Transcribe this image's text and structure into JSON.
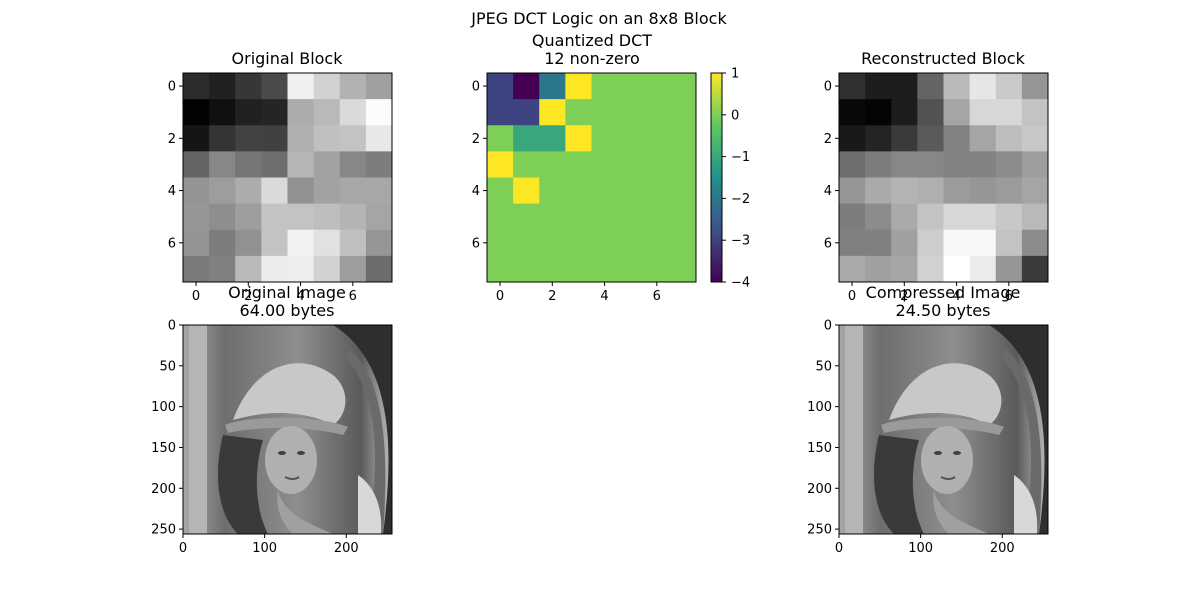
{
  "figure": {
    "title": "JPEG DCT Logic on an 8x8 Block"
  },
  "chart_data": [
    {
      "type": "heatmap",
      "title": "Original Block",
      "colormap": "gray",
      "x_ticks": [
        0,
        2,
        4,
        6
      ],
      "y_ticks": [
        0,
        2,
        4,
        6
      ],
      "matrix": [
        [
          44,
          33,
          55,
          74,
          240,
          210,
          178,
          160
        ],
        [
          3,
          16,
          33,
          37,
          172,
          185,
          218,
          252
        ],
        [
          21,
          52,
          66,
          65,
          175,
          192,
          195,
          232
        ],
        [
          100,
          135,
          118,
          110,
          181,
          162,
          135,
          125
        ],
        [
          148,
          157,
          172,
          218,
          146,
          162,
          167,
          167
        ],
        [
          150,
          142,
          157,
          195,
          195,
          190,
          180,
          165
        ],
        [
          148,
          125,
          145,
          195,
          242,
          225,
          192,
          150
        ],
        [
          122,
          128,
          185,
          235,
          238,
          210,
          158,
          108
        ]
      ]
    },
    {
      "type": "heatmap",
      "title": "Quantized DCT",
      "subtitle": "12 non-zero",
      "colormap": "viridis",
      "vmin": -4,
      "vmax": 1,
      "x_ticks": [
        0,
        2,
        4,
        6
      ],
      "y_ticks": [
        0,
        2,
        4,
        6
      ],
      "colorbar_ticks": [
        1,
        0,
        -1,
        -2,
        -3,
        -4
      ],
      "matrix": [
        [
          -3,
          -4,
          -2,
          1,
          0,
          0,
          0,
          0
        ],
        [
          -3,
          -3,
          1,
          0,
          0,
          0,
          0,
          0
        ],
        [
          0,
          -1,
          -1,
          1,
          0,
          0,
          0,
          0
        ],
        [
          1,
          0,
          0,
          0,
          0,
          0,
          0,
          0
        ],
        [
          0,
          1,
          0,
          0,
          0,
          0,
          0,
          0
        ],
        [
          0,
          0,
          0,
          0,
          0,
          0,
          0,
          0
        ],
        [
          0,
          0,
          0,
          0,
          0,
          0,
          0,
          0
        ],
        [
          0,
          0,
          0,
          0,
          0,
          0,
          0,
          0
        ]
      ]
    },
    {
      "type": "heatmap",
      "title": "Reconstructed Block",
      "colormap": "gray",
      "x_ticks": [
        0,
        2,
        4,
        6
      ],
      "y_ticks": [
        0,
        2,
        4,
        6
      ],
      "matrix": [
        [
          48,
          29,
          29,
          100,
          186,
          230,
          202,
          150
        ],
        [
          8,
          4,
          29,
          82,
          165,
          215,
          215,
          195
        ],
        [
          25,
          36,
          58,
          90,
          130,
          165,
          190,
          200
        ],
        [
          110,
          125,
          135,
          135,
          130,
          130,
          140,
          158
        ],
        [
          150,
          170,
          180,
          175,
          155,
          150,
          155,
          165
        ],
        [
          125,
          140,
          170,
          195,
          215,
          215,
          200,
          185
        ],
        [
          128,
          128,
          160,
          205,
          248,
          248,
          195,
          140
        ],
        [
          170,
          160,
          165,
          210,
          255,
          235,
          150,
          58
        ]
      ]
    },
    {
      "type": "image",
      "title": "Original Image",
      "subtitle": "64.00 bytes",
      "x_ticks": [
        0,
        100,
        200
      ],
      "y_ticks": [
        0,
        50,
        100,
        150,
        200,
        250
      ],
      "xlim": [
        0,
        256
      ],
      "ylim": [
        256,
        0
      ]
    },
    {
      "type": "image",
      "title": "Compressed Image",
      "subtitle": "24.50 bytes",
      "x_ticks": [
        0,
        100,
        200
      ],
      "y_ticks": [
        0,
        50,
        100,
        150,
        200,
        250
      ],
      "xlim": [
        0,
        256
      ],
      "ylim": [
        256,
        0
      ]
    }
  ]
}
